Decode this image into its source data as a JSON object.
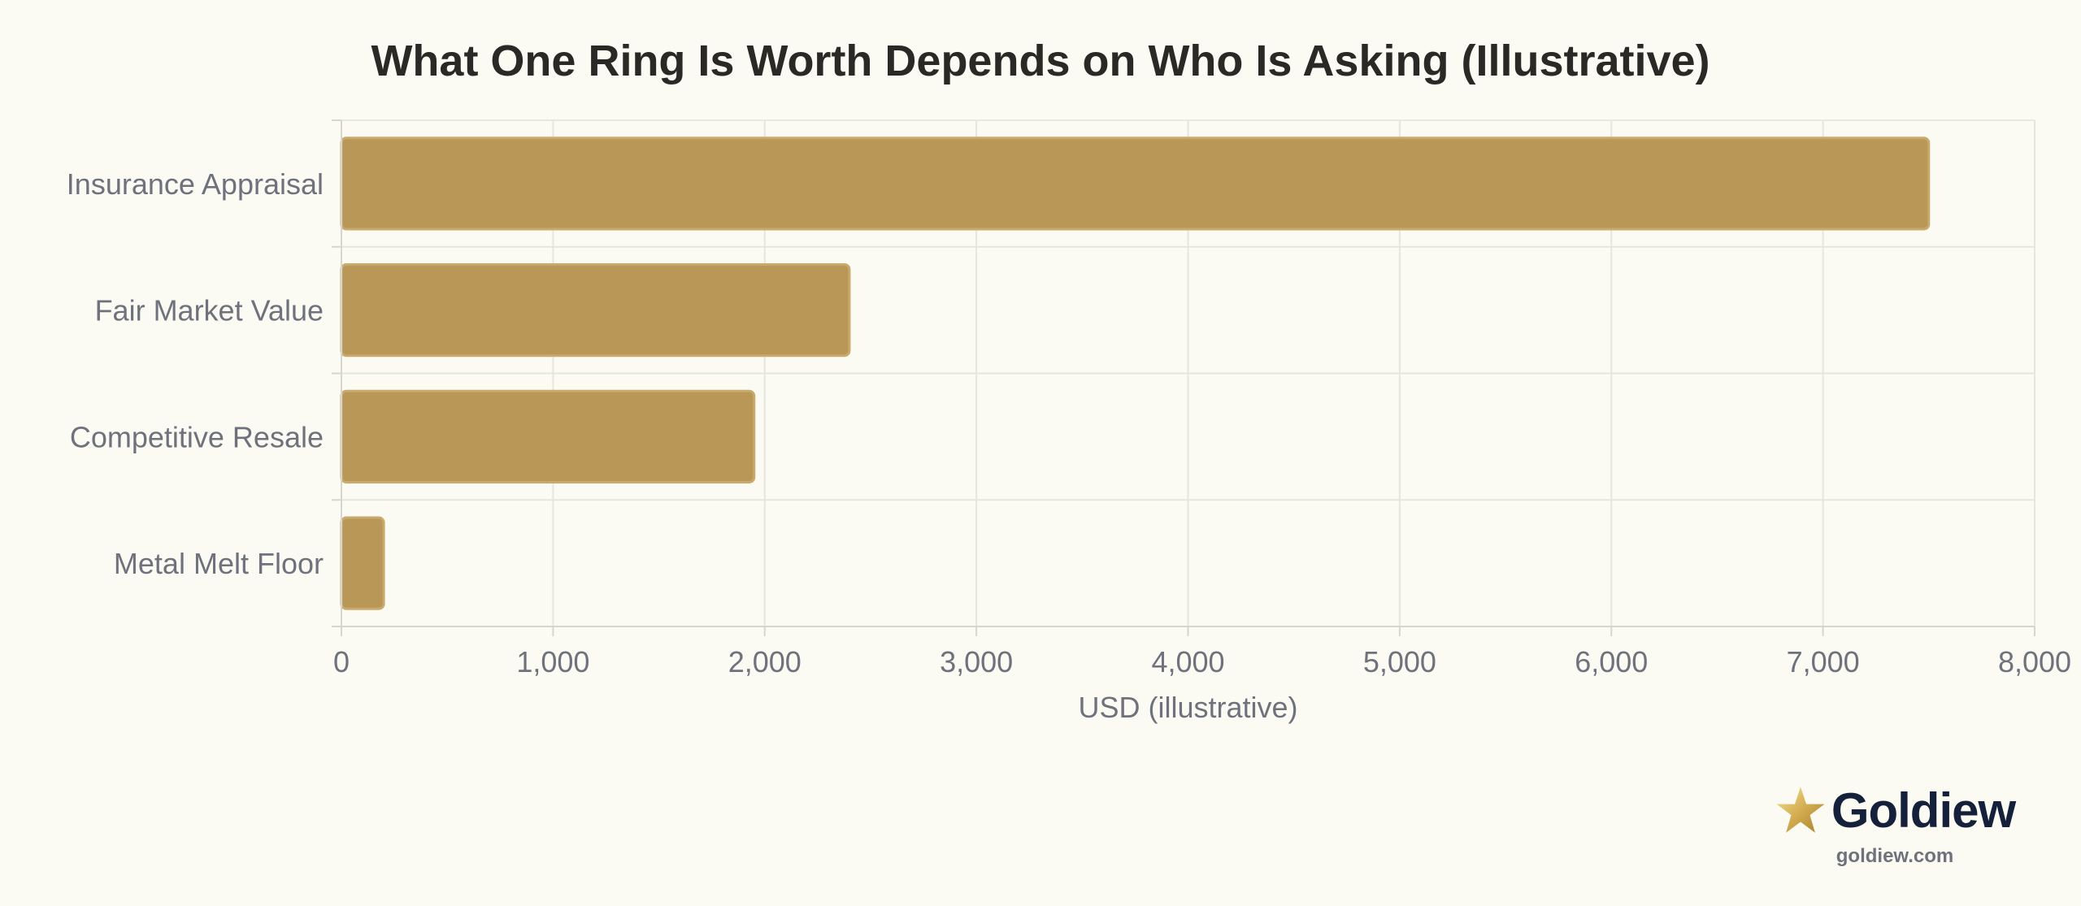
{
  "chart_data": {
    "type": "bar",
    "orientation": "horizontal",
    "title": "What One Ring Is Worth Depends on Who Is Asking (Illustrative)",
    "categories": [
      "Insurance Appraisal",
      "Fair Market Value",
      "Competitive Resale",
      "Metal Melt Floor"
    ],
    "values": [
      7500,
      2400,
      1950,
      200
    ],
    "xlabel": "USD (illustrative)",
    "ylabel": "",
    "xlim": [
      0,
      8000
    ],
    "xticks": [
      0,
      1000,
      2000,
      3000,
      4000,
      5000,
      6000,
      7000,
      8000
    ],
    "xtick_labels": [
      "0",
      "1,000",
      "2,000",
      "3,000",
      "4,000",
      "5,000",
      "6,000",
      "7,000",
      "8,000"
    ],
    "grid": true,
    "legend": "none",
    "bar_color": "#b99757",
    "bar_edge_color": "#c9aa6c"
  },
  "brand": {
    "name": "Goldiew",
    "url": "goldiew.com",
    "icon": "star-icon"
  }
}
